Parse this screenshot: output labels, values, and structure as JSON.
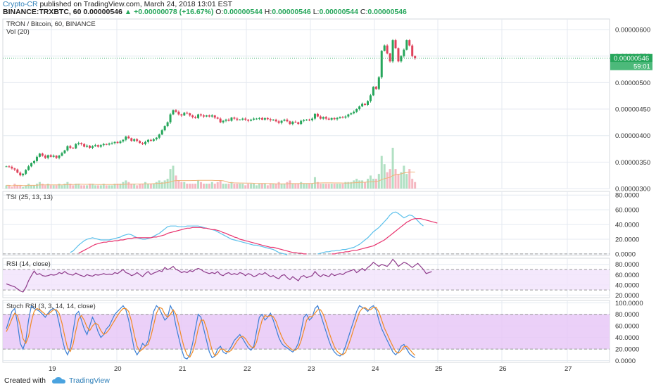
{
  "header": {
    "user": "Crypto-CR",
    "published": "published on TradingView.com, March 24, 2018 13:01 EST",
    "symbol": "BINANCE:TRXBTC, 60",
    "last": "0.00000546",
    "change": "+0.00000078 (+16.67%)",
    "o_label": "O:",
    "o": "0.00000544",
    "h_label": "H:",
    "h": "0.00000546",
    "l_label": "L:",
    "l": "0.00000544",
    "c_label": "C:",
    "c": "0.00000546"
  },
  "footer": {
    "created": "Created with",
    "brand": "TradingView"
  },
  "colors": {
    "up": "#26a65b",
    "down": "#e0415a",
    "tsi": "#5bc0eb",
    "tsi_signal": "#e8336e",
    "rsi": "#8e3a8a",
    "rsi_band": "#f2e4fb",
    "stoch_k": "#3a7fd5",
    "stoch_d": "#f08a24",
    "stoch_band": "#e7c8f7",
    "grid": "#e4eaf0",
    "current_price": "#26a65b"
  },
  "chart_data": [
    {
      "type": "candlestick",
      "title": "TRON / Bitcoin, 60, BINANCE",
      "subtitle": "Vol (20)",
      "y_ticks": [
        "0.00000600",
        "0.00000550",
        "0.00000500",
        "0.00000450",
        "0.00000400",
        "0.00000350",
        "0.00000300"
      ],
      "ylim": [
        3e-06,
        6.2e-06
      ],
      "x_ticks": [
        "19",
        "20",
        "21",
        "22",
        "23",
        "24",
        "25",
        "26",
        "27"
      ],
      "current_price_label": "0.00000546",
      "countdown": "59:01",
      "close": [
        3.42,
        3.41,
        3.38,
        3.36,
        3.3,
        3.25,
        3.28,
        3.35,
        3.42,
        3.48,
        3.52,
        3.6,
        3.66,
        3.62,
        3.58,
        3.63,
        3.6,
        3.62,
        3.58,
        3.62,
        3.67,
        3.72,
        3.8,
        3.77,
        3.76,
        3.84,
        3.86,
        3.84,
        3.79,
        3.81,
        3.77,
        3.8,
        3.82,
        3.79,
        3.82,
        3.84,
        3.83,
        3.85,
        3.86,
        3.88,
        3.86,
        3.89,
        3.92,
        3.98,
        3.95,
        3.9,
        3.93,
        3.9,
        3.86,
        3.84,
        3.88,
        3.92,
        3.9,
        3.93,
        3.96,
        4.02,
        4.1,
        4.18,
        4.25,
        4.4,
        4.48,
        4.45,
        4.4,
        4.38,
        4.43,
        4.42,
        4.38,
        4.35,
        4.33,
        4.4,
        4.38,
        4.36,
        4.38,
        4.36,
        4.38,
        4.34,
        4.32,
        4.25,
        4.28,
        4.3,
        4.28,
        4.34,
        4.32,
        4.3,
        4.3,
        4.32,
        4.3,
        4.28,
        4.3,
        4.32,
        4.32,
        4.33,
        4.3,
        4.33,
        4.31,
        4.29,
        4.3,
        4.27,
        4.24,
        4.28,
        4.3,
        4.27,
        4.22,
        4.26,
        4.25,
        4.22,
        4.28,
        4.29,
        4.3,
        4.29,
        4.32,
        4.41,
        4.36,
        4.32,
        4.35,
        4.32,
        4.3,
        4.33,
        4.31,
        4.33,
        4.35,
        4.34,
        4.36,
        4.4,
        4.42,
        4.45,
        4.5,
        4.55,
        4.6,
        4.58,
        4.65,
        4.76,
        4.92,
        4.88,
        5.1,
        5.6,
        5.7,
        5.55,
        5.4,
        5.8,
        5.65,
        5.4,
        5.5,
        5.62,
        5.8,
        5.7,
        5.5,
        5.46
      ],
      "volume": [
        2,
        2,
        1,
        3,
        2,
        2,
        1,
        2,
        3,
        2,
        2,
        3,
        4,
        3,
        2,
        3,
        2,
        2,
        2,
        3,
        2,
        3,
        4,
        3,
        2,
        3,
        3,
        2,
        2,
        2,
        3,
        3,
        2,
        2,
        2,
        3,
        2,
        2,
        2,
        3,
        3,
        3,
        4,
        5,
        4,
        3,
        3,
        2,
        3,
        3,
        4,
        3,
        3,
        3,
        4,
        5,
        4,
        5,
        6,
        12,
        14,
        8,
        5,
        4,
        4,
        3,
        3,
        3,
        3,
        5,
        4,
        3,
        3,
        3,
        4,
        3,
        4,
        5,
        3,
        3,
        3,
        4,
        3,
        3,
        3,
        3,
        2,
        3,
        3,
        3,
        2,
        3,
        3,
        3,
        2,
        3,
        3,
        3,
        4,
        3,
        3,
        4,
        5,
        3,
        3,
        3,
        4,
        3,
        3,
        3,
        3,
        7,
        4,
        3,
        3,
        3,
        3,
        3,
        3,
        3,
        3,
        3,
        4,
        4,
        4,
        5,
        6,
        5,
        5,
        4,
        6,
        8,
        6,
        6,
        9,
        20,
        15,
        10,
        12,
        25,
        12,
        9,
        10,
        14,
        9,
        12,
        6,
        4
      ]
    },
    {
      "type": "line",
      "title": "TSI (25, 13, 13)",
      "y_ticks": [
        "80.0000",
        "60.0000",
        "40.0000",
        "20.0000",
        "0.0000"
      ],
      "ylim": [
        -2,
        85
      ],
      "series": [
        {
          "values": [
            null,
            null,
            null,
            null,
            null,
            null,
            null,
            null,
            null,
            null,
            null,
            null,
            null,
            null,
            null,
            null,
            null,
            null,
            null,
            null,
            null,
            null,
            null,
            2,
            4,
            8,
            12,
            15,
            18,
            20,
            21,
            22,
            21,
            20,
            19,
            19,
            19,
            19,
            20,
            21,
            22,
            23,
            25,
            26,
            27,
            26,
            24,
            22,
            21,
            20,
            20,
            21,
            22,
            24,
            26,
            28,
            31,
            34,
            37,
            38,
            38,
            38,
            37,
            37,
            37,
            38,
            38,
            38,
            38,
            38,
            37,
            36,
            35,
            34,
            33,
            32,
            30,
            28,
            26,
            24,
            22,
            20,
            19,
            18,
            17,
            16,
            15,
            14,
            13,
            12,
            12,
            11,
            10,
            9,
            8,
            7,
            6,
            4,
            2,
            1,
            0,
            -1,
            null,
            null,
            null,
            null,
            null,
            null,
            null,
            null,
            null,
            null,
            0,
            1,
            2,
            3,
            3,
            4,
            4,
            5,
            5,
            6,
            6,
            7,
            8,
            9,
            11,
            13,
            16,
            19,
            22,
            26,
            30,
            33,
            36,
            40,
            44,
            48,
            53,
            56,
            57,
            55,
            52,
            49,
            51,
            53,
            52,
            49,
            45,
            41,
            38
          ]
        },
        {
          "values": [
            null,
            null,
            null,
            null,
            null,
            null,
            null,
            null,
            null,
            null,
            null,
            null,
            null,
            null,
            null,
            null,
            null,
            null,
            null,
            null,
            null,
            null,
            null,
            null,
            null,
            null,
            1,
            3,
            5,
            7,
            9,
            11,
            13,
            14,
            15,
            16,
            16,
            17,
            17,
            18,
            18,
            19,
            19,
            20,
            21,
            21,
            22,
            22,
            22,
            22,
            22,
            22,
            22,
            23,
            23,
            24,
            25,
            26,
            28,
            29,
            30,
            31,
            32,
            33,
            34,
            35,
            35,
            36,
            36,
            36,
            36,
            35,
            35,
            34,
            33,
            33,
            32,
            31,
            29,
            28,
            26,
            25,
            23,
            22,
            20,
            19,
            18,
            17,
            16,
            15,
            14,
            13,
            12,
            11,
            10,
            9,
            9,
            8,
            7,
            6,
            5,
            4,
            3,
            2,
            2,
            1,
            1,
            0,
            0,
            null,
            null,
            null,
            null,
            null,
            null,
            null,
            null,
            0,
            0,
            1,
            2,
            2,
            3,
            3,
            4,
            5,
            5,
            6,
            7,
            8,
            9,
            10,
            11,
            13,
            15,
            17,
            19,
            22,
            25,
            28,
            31,
            34,
            37,
            40,
            43,
            45,
            47,
            48,
            48,
            48,
            47,
            46,
            45,
            44,
            43,
            42
          ]
        }
      ]
    },
    {
      "type": "line",
      "title": "RSI (14, close)",
      "y_ticks": [
        "80.0000",
        "60.0000",
        "40.0000",
        "20.0000"
      ],
      "ylim": [
        15,
        92
      ],
      "band": [
        30,
        70
      ],
      "series": [
        {
          "values": [
            42,
            40,
            38,
            36,
            32,
            28,
            26,
            35,
            48,
            58,
            67,
            60,
            62,
            58,
            57,
            58,
            60,
            59,
            60,
            64,
            62,
            66,
            62,
            60,
            59,
            63,
            60,
            58,
            56,
            60,
            58,
            57,
            60,
            59,
            60,
            62,
            60,
            61,
            60,
            64,
            62,
            66,
            70,
            64,
            62,
            58,
            60,
            64,
            60,
            56,
            62,
            66,
            60,
            63,
            65,
            68,
            66,
            74,
            70,
            72,
            76,
            70,
            68,
            64,
            66,
            64,
            68,
            66,
            70,
            72,
            70,
            66,
            64,
            62,
            64,
            62,
            66,
            60,
            58,
            62,
            64,
            60,
            62,
            60,
            64,
            62,
            58,
            62,
            60,
            56,
            58,
            62,
            60,
            64,
            60,
            56,
            58,
            54,
            52,
            58,
            60,
            54,
            50,
            56,
            52,
            48,
            56,
            58,
            54,
            56,
            58,
            66,
            60,
            56,
            60,
            58,
            56,
            62,
            58,
            60,
            62,
            60,
            64,
            66,
            68,
            70,
            64,
            68,
            72,
            68,
            74,
            78,
            84,
            80,
            76,
            80,
            78,
            76,
            82,
            90,
            84,
            76,
            80,
            84,
            82,
            78,
            74,
            78,
            82,
            76,
            70,
            62,
            64,
            66
          ]
        }
      ]
    },
    {
      "type": "line",
      "title": "Stoch RSI (3, 3, 14, 14, close)",
      "y_ticks": [
        "100.0000",
        "80.0000",
        "60.0000",
        "40.0000",
        "20.0000",
        "0.0000"
      ],
      "ylim": [
        -3,
        104
      ],
      "band": [
        20,
        80
      ],
      "series": [
        {
          "values": [
            55,
            70,
            85,
            90,
            65,
            30,
            20,
            35,
            70,
            95,
            90,
            88,
            85,
            80,
            75,
            82,
            88,
            90,
            85,
            65,
            40,
            20,
            10,
            22,
            50,
            80,
            85,
            70,
            55,
            45,
            60,
            75,
            65,
            50,
            40,
            45,
            55,
            60,
            70,
            80,
            85,
            90,
            95,
            88,
            70,
            45,
            20,
            10,
            18,
            30,
            25,
            35,
            60,
            85,
            95,
            90,
            80,
            70,
            75,
            95,
            85,
            60,
            40,
            20,
            5,
            3,
            10,
            30,
            55,
            80,
            75,
            55,
            35,
            15,
            5,
            8,
            20,
            25,
            15,
            12,
            18,
            25,
            35,
            40,
            45,
            38,
            30,
            22,
            18,
            25,
            50,
            75,
            80,
            70,
            75,
            82,
            70,
            55,
            40,
            30,
            25,
            22,
            18,
            15,
            20,
            30,
            50,
            75,
            80,
            70,
            75,
            90,
            95,
            80,
            65,
            50,
            35,
            22,
            15,
            10,
            8,
            12,
            25,
            40,
            55,
            70,
            85,
            95,
            92,
            90,
            85,
            92,
            95,
            88,
            70,
            55,
            45,
            35,
            25,
            15,
            10,
            15,
            25,
            28,
            20,
            12,
            8,
            5
          ]
        },
        {
          "values": [
            50,
            60,
            72,
            82,
            78,
            60,
            38,
            30,
            42,
            68,
            85,
            90,
            88,
            84,
            80,
            80,
            84,
            88,
            88,
            82,
            65,
            42,
            22,
            16,
            28,
            52,
            72,
            78,
            70,
            58,
            52,
            60,
            65,
            62,
            52,
            45,
            48,
            54,
            62,
            70,
            78,
            85,
            90,
            90,
            85,
            68,
            45,
            25,
            16,
            20,
            25,
            28,
            42,
            62,
            82,
            92,
            90,
            80,
            75,
            80,
            88,
            80,
            62,
            40,
            22,
            10,
            6,
            15,
            32,
            55,
            70,
            70,
            56,
            36,
            18,
            8,
            12,
            20,
            20,
            16,
            15,
            18,
            26,
            34,
            40,
            42,
            38,
            30,
            24,
            22,
            32,
            52,
            70,
            78,
            76,
            78,
            76,
            68,
            54,
            42,
            32,
            26,
            22,
            18,
            18,
            22,
            34,
            52,
            70,
            76,
            76,
            82,
            88,
            88,
            80,
            66,
            50,
            36,
            24,
            16,
            12,
            10,
            14,
            26,
            40,
            56,
            70,
            84,
            90,
            92,
            88,
            88,
            92,
            92,
            84,
            70,
            56,
            46,
            35,
            25,
            16,
            13,
            17,
            24,
            25,
            20,
            14,
            9
          ]
        }
      ]
    }
  ]
}
